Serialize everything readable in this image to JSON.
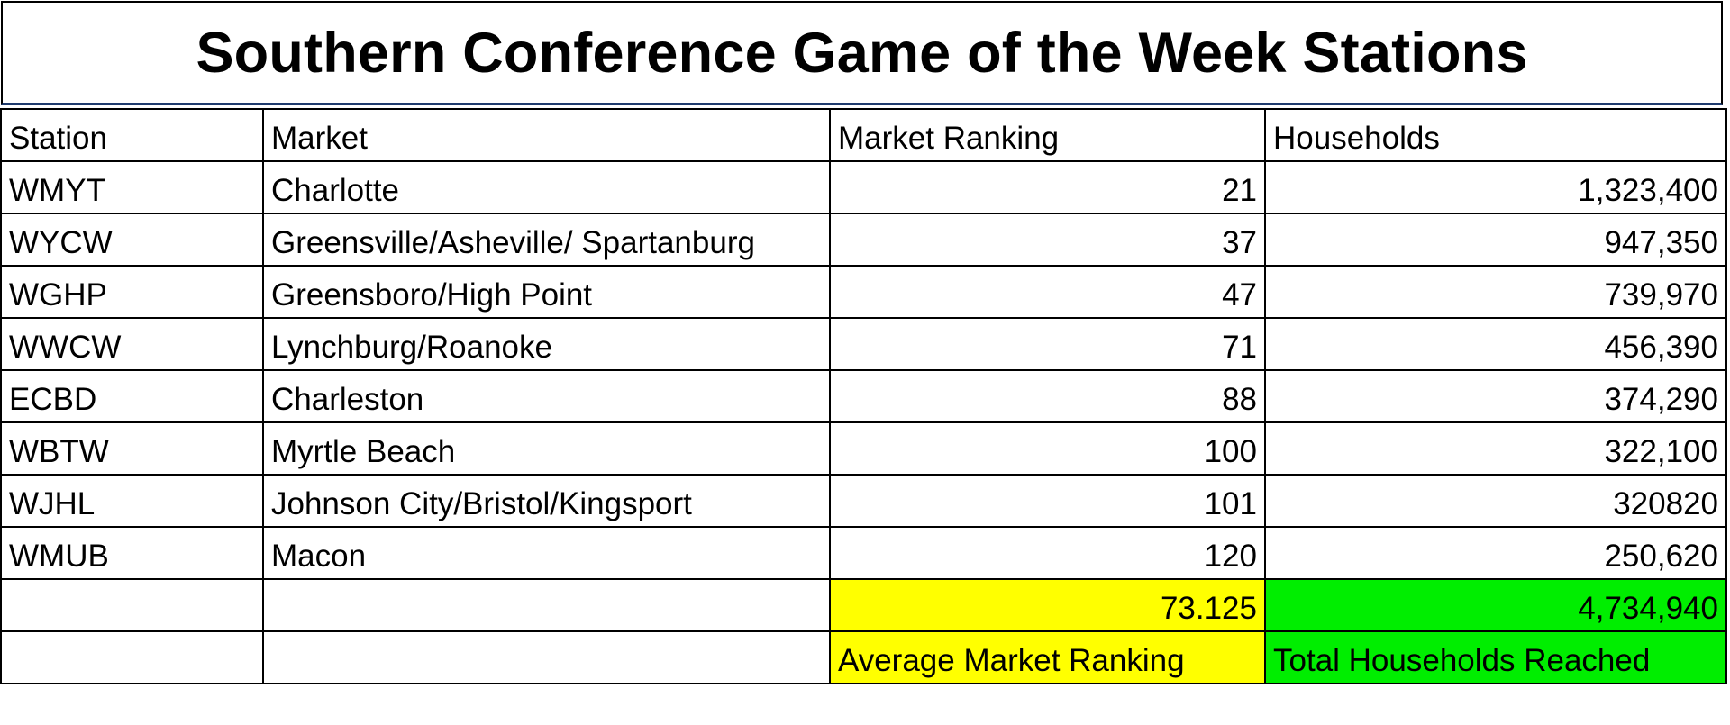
{
  "title": "Southern Conference Game of the Week Stations",
  "columns": [
    "Station",
    "Market",
    "Market Ranking",
    "Households"
  ],
  "rows": [
    {
      "station": "WMYT",
      "market": "Charlotte",
      "ranking": "21",
      "households": "1,323,400"
    },
    {
      "station": "WYCW",
      "market": "Greensville/Asheville/ Spartanburg",
      "ranking": "37",
      "households": "947,350"
    },
    {
      "station": "WGHP",
      "market": "Greensboro/High Point",
      "ranking": "47",
      "households": "739,970"
    },
    {
      "station": "WWCW",
      "market": "Lynchburg/Roanoke",
      "ranking": "71",
      "households": "456,390"
    },
    {
      "station": "ECBD",
      "market": "Charleston",
      "ranking": "88",
      "households": "374,290"
    },
    {
      "station": "WBTW",
      "market": "Myrtle Beach",
      "ranking": "100",
      "households": "322,100"
    },
    {
      "station": "WJHL",
      "market": "Johnson City/Bristol/Kingsport",
      "ranking": "101",
      "households": "320820"
    },
    {
      "station": "WMUB",
      "market": "Macon",
      "ranking": "120",
      "households": "250,620"
    }
  ],
  "summary": {
    "average_ranking": "73.125",
    "total_households": "4,734,940",
    "average_label": "Average Market Ranking",
    "total_label": "Total Households Reached"
  },
  "colors": {
    "average_highlight": "#ffff00",
    "total_highlight": "#00ee00"
  }
}
